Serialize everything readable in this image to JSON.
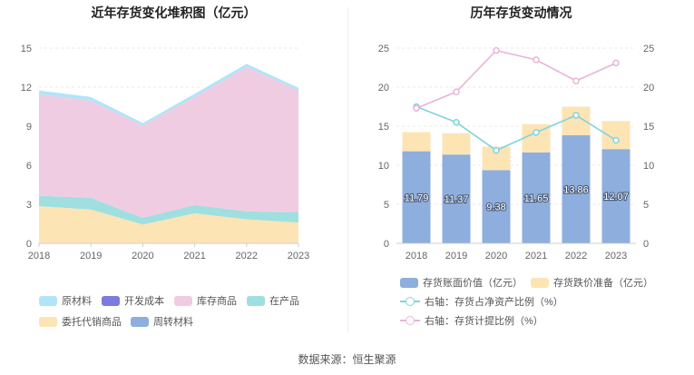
{
  "chart_data": [
    {
      "type": "area",
      "stacked": true,
      "title": "近年存货变化堆积图（亿元）",
      "x": [
        "2018",
        "2019",
        "2020",
        "2021",
        "2022",
        "2023"
      ],
      "ylim": [
        0,
        15
      ],
      "yticks": [
        "0",
        "3",
        "6",
        "9",
        "12",
        "15"
      ],
      "grid": true,
      "legend_position": "bottom",
      "series": [
        {
          "name": "委托代销商品",
          "color": "#fde4b4",
          "values": [
            2.85,
            2.6,
            1.45,
            2.3,
            1.85,
            1.6
          ]
        },
        {
          "name": "周转材料",
          "color": "#8eaedd",
          "values": [
            0.0,
            0.0,
            0.0,
            0.0,
            0.0,
            0.0
          ]
        },
        {
          "name": "在产品",
          "color": "#9fdfe0",
          "values": [
            0.8,
            0.9,
            0.5,
            0.65,
            0.6,
            0.8
          ]
        },
        {
          "name": "开发成本",
          "color": "#7b7be0",
          "values": [
            0.0,
            0.0,
            0.0,
            0.0,
            0.0,
            0.0
          ]
        },
        {
          "name": "库存商品",
          "color": "#f0cce3",
          "values": [
            7.8,
            7.45,
            7.1,
            8.3,
            11.1,
            9.35
          ]
        },
        {
          "name": "原材料",
          "color": "#b1e4f8",
          "values": [
            0.35,
            0.35,
            0.25,
            0.3,
            0.3,
            0.25
          ]
        }
      ],
      "legend_order": [
        "原材料",
        "开发成本",
        "库存商品",
        "在产品",
        "委托代销商品",
        "周转材料"
      ]
    },
    {
      "type": "bar",
      "title": "历年存货变动情况",
      "categories": [
        "2018",
        "2019",
        "2020",
        "2021",
        "2022",
        "2023"
      ],
      "ylim": [
        0,
        25
      ],
      "yticks": [
        "0",
        "5",
        "10",
        "15",
        "20",
        "25"
      ],
      "y2lim": [
        0,
        25
      ],
      "y2ticks": [
        "0",
        "5",
        "10",
        "15",
        "20",
        "25"
      ],
      "grid": true,
      "legend_position": "bottom",
      "bars": [
        {
          "name": "存货账面价值（亿元）",
          "color": "#8eaedd",
          "values": [
            11.79,
            11.37,
            9.38,
            11.65,
            13.86,
            12.07
          ],
          "labels": [
            "11.79",
            "11.37",
            "9.38",
            "11.65",
            "13.86",
            "12.07"
          ]
        },
        {
          "name": "存货跌价准备（亿元）",
          "color": "#fde4b4",
          "values": [
            2.45,
            2.73,
            3.02,
            3.62,
            3.64,
            3.6
          ]
        }
      ],
      "lines": [
        {
          "name": "右轴：存货占净资产比例（%）",
          "color": "#7fd4df",
          "axis": "right",
          "values": [
            17.5,
            15.5,
            11.9,
            14.2,
            16.4,
            13.2
          ]
        },
        {
          "name": "右轴：存货计提比例（%）",
          "color": "#e8b4d8",
          "axis": "right",
          "values": [
            17.3,
            19.4,
            24.7,
            23.5,
            20.8,
            23.1
          ]
        }
      ]
    }
  ],
  "source": "数据来源：恒生聚源"
}
